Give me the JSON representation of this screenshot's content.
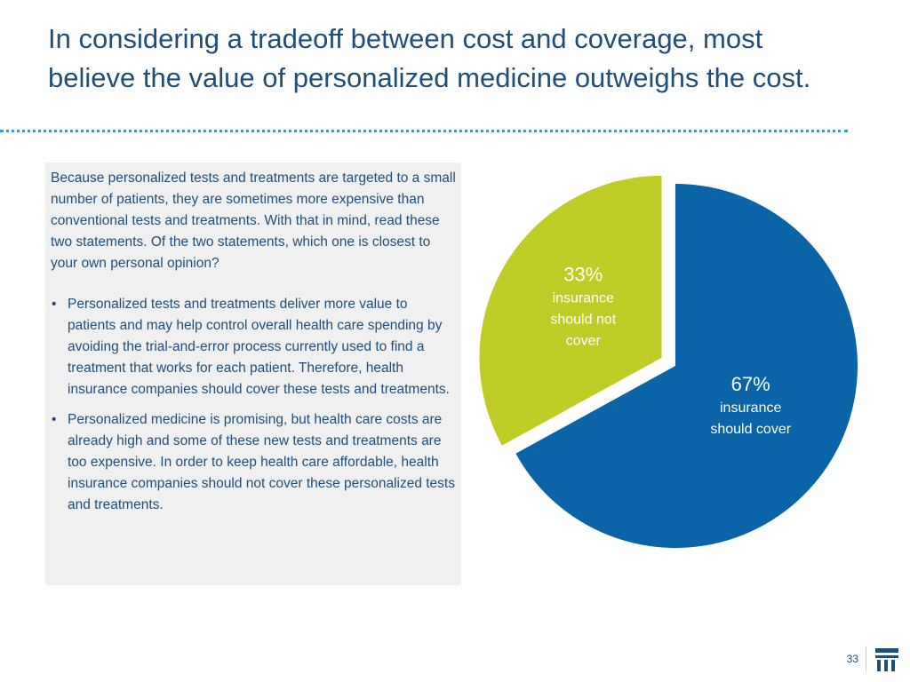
{
  "title": "In considering a tradeoff between cost and coverage, most believe the value of personalized medicine outweighs the cost.",
  "question": {
    "intro": "Because personalized tests and treatments are targeted to a small number of patients, they are sometimes more expensive than conventional tests and treatments. With that in mind, read these two statements. Of the two statements, which one is closest to your own personal opinion?",
    "bullets": [
      "Personalized tests and treatments deliver more value to patients and may help control overall health care spending by avoiding the trial-and-error process currently used to find a treatment that works for each patient. Therefore, health insurance companies should cover these tests and treatments.",
      "Personalized medicine is promising, but health care costs are already high and some of these new tests and treatments are too expensive. In order to keep health care affordable, health insurance companies should not cover these personalized tests and treatments."
    ]
  },
  "chart_data": {
    "type": "pie",
    "title": "",
    "slices": [
      {
        "label": "insurance should cover",
        "label_lines": [
          "insurance",
          "should cover"
        ],
        "value": 67,
        "value_label": "67%",
        "color": "#0b63a8",
        "text_color": "#ffffff",
        "exploded": false
      },
      {
        "label": "insurance should not cover",
        "label_lines": [
          "insurance",
          "should not",
          "cover"
        ],
        "value": 33,
        "value_label": "33%",
        "color": "#bfcc26",
        "text_color": "#ffffff",
        "exploded": true
      }
    ]
  },
  "footer": {
    "page_number": "33"
  },
  "colors": {
    "title": "#1f4e79",
    "rule": "#2aa3d0",
    "box_background": "#f0f0f0"
  }
}
